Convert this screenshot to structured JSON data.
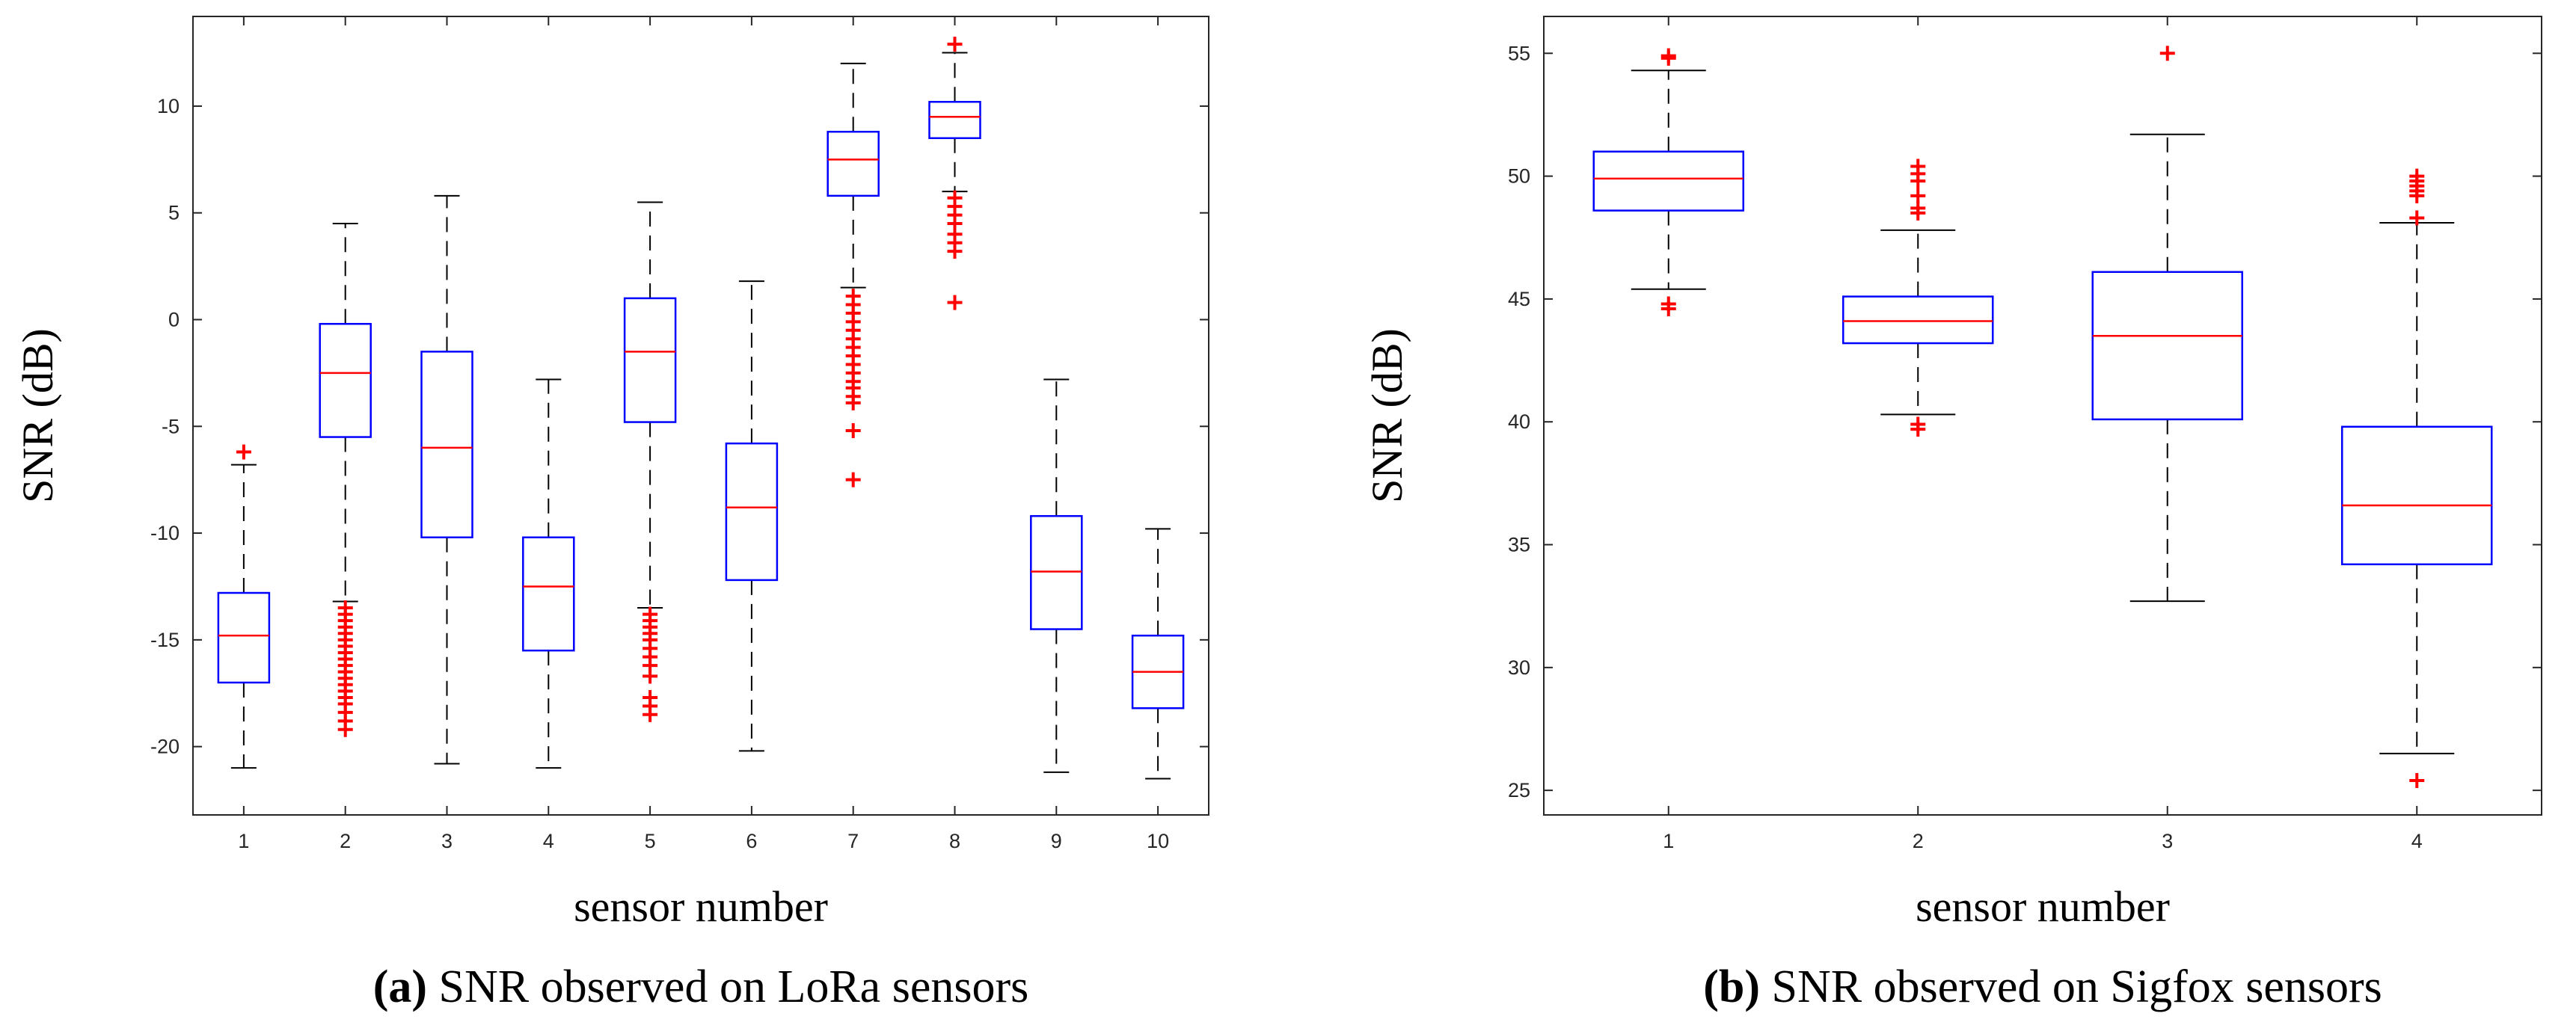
{
  "colors": {
    "box": "#0000ff",
    "median": "#ff0000",
    "outlier": "#ff0000",
    "whisker": "#000000",
    "axis": "#262626"
  },
  "chart_data": [
    {
      "type": "boxplot",
      "id": "lora",
      "caption_tag": "(a)",
      "caption": "SNR observed on LoRa sensors",
      "xlabel": "sensor number",
      "ylabel": "SNR (dB)",
      "ylim": [
        -23.2,
        14.2
      ],
      "yticks": [
        -20,
        -15,
        -10,
        -5,
        0,
        5,
        10
      ],
      "ytick_labels": [
        "-20",
        "-15",
        "-10",
        "-5",
        "0",
        "5",
        "10"
      ],
      "categories": [
        "1",
        "2",
        "3",
        "4",
        "5",
        "6",
        "7",
        "8",
        "9",
        "10"
      ],
      "boxes": [
        {
          "whislo": -21.0,
          "q1": -17.0,
          "med": -14.8,
          "q3": -12.8,
          "whishi": -6.8,
          "fliers": [
            -6.2
          ]
        },
        {
          "whislo": -13.2,
          "q1": -5.5,
          "med": -2.5,
          "q3": -0.2,
          "whishi": 4.5,
          "fliers": [
            -13.5,
            -13.8,
            -14.1,
            -14.4,
            -14.7,
            -15.0,
            -15.3,
            -15.6,
            -15.9,
            -16.2,
            -16.5,
            -16.8,
            -17.1,
            -17.4,
            -17.7,
            -18.0,
            -18.4,
            -18.8,
            -19.2
          ]
        },
        {
          "whislo": -20.8,
          "q1": -10.2,
          "med": -6.0,
          "q3": -1.5,
          "whishi": 5.8,
          "fliers": []
        },
        {
          "whislo": -21.0,
          "q1": -15.5,
          "med": -12.5,
          "q3": -10.2,
          "whishi": -2.8,
          "fliers": []
        },
        {
          "whislo": -13.5,
          "q1": -4.8,
          "med": -1.5,
          "q3": 1.0,
          "whishi": 5.5,
          "fliers": [
            -13.8,
            -14.1,
            -14.4,
            -14.7,
            -15.0,
            -15.4,
            -15.8,
            -16.2,
            -16.7,
            -17.7,
            -18.1,
            -18.5
          ]
        },
        {
          "whislo": -20.2,
          "q1": -12.2,
          "med": -8.8,
          "q3": -5.8,
          "whishi": 1.8,
          "fliers": []
        },
        {
          "whislo": 1.5,
          "q1": 5.8,
          "med": 7.5,
          "q3": 8.8,
          "whishi": 12.0,
          "fliers": [
            1.1,
            0.7,
            0.3,
            -0.1,
            -0.5,
            -0.9,
            -1.3,
            -1.7,
            -2.1,
            -2.5,
            -2.9,
            -3.2,
            -3.6,
            -3.9,
            -5.2,
            -7.5
          ]
        },
        {
          "whislo": 6.0,
          "q1": 8.5,
          "med": 9.5,
          "q3": 10.2,
          "whishi": 12.5,
          "fliers": [
            12.9,
            5.7,
            5.3,
            4.9,
            4.5,
            4.0,
            3.6,
            3.2,
            0.8
          ]
        },
        {
          "whislo": -21.2,
          "q1": -14.5,
          "med": -11.8,
          "q3": -9.2,
          "whishi": -2.8,
          "fliers": []
        },
        {
          "whislo": -21.5,
          "q1": -18.2,
          "med": -16.5,
          "q3": -14.8,
          "whishi": -9.8,
          "fliers": []
        }
      ]
    },
    {
      "type": "boxplot",
      "id": "sigfox",
      "caption_tag": "(b)",
      "caption": "SNR observed on Sigfox sensors",
      "xlabel": "sensor number",
      "ylabel": "SNR (dB)",
      "ylim": [
        24.0,
        56.5
      ],
      "yticks": [
        25,
        30,
        35,
        40,
        45,
        50,
        55
      ],
      "ytick_labels": [
        "25",
        "30",
        "35",
        "40",
        "45",
        "50",
        "55"
      ],
      "categories": [
        "1",
        "2",
        "3",
        "4"
      ],
      "boxes": [
        {
          "whislo": 45.4,
          "q1": 48.6,
          "med": 49.9,
          "q3": 51.0,
          "whishi": 54.3,
          "fliers": [
            54.8,
            54.9,
            44.8,
            44.6
          ]
        },
        {
          "whislo": 40.3,
          "q1": 43.2,
          "med": 44.1,
          "q3": 45.1,
          "whishi": 47.8,
          "fliers": [
            48.5,
            48.7,
            49.2,
            49.8,
            50.1,
            50.4,
            39.9,
            39.7
          ]
        },
        {
          "whislo": 32.7,
          "q1": 40.1,
          "med": 43.5,
          "q3": 46.1,
          "whishi": 51.7,
          "fliers": [
            55.0
          ]
        },
        {
          "whislo": 26.5,
          "q1": 34.2,
          "med": 36.6,
          "q3": 39.8,
          "whishi": 48.1,
          "fliers": [
            48.3,
            49.2,
            49.4,
            49.6,
            49.8,
            50.0,
            25.4
          ]
        }
      ]
    }
  ]
}
